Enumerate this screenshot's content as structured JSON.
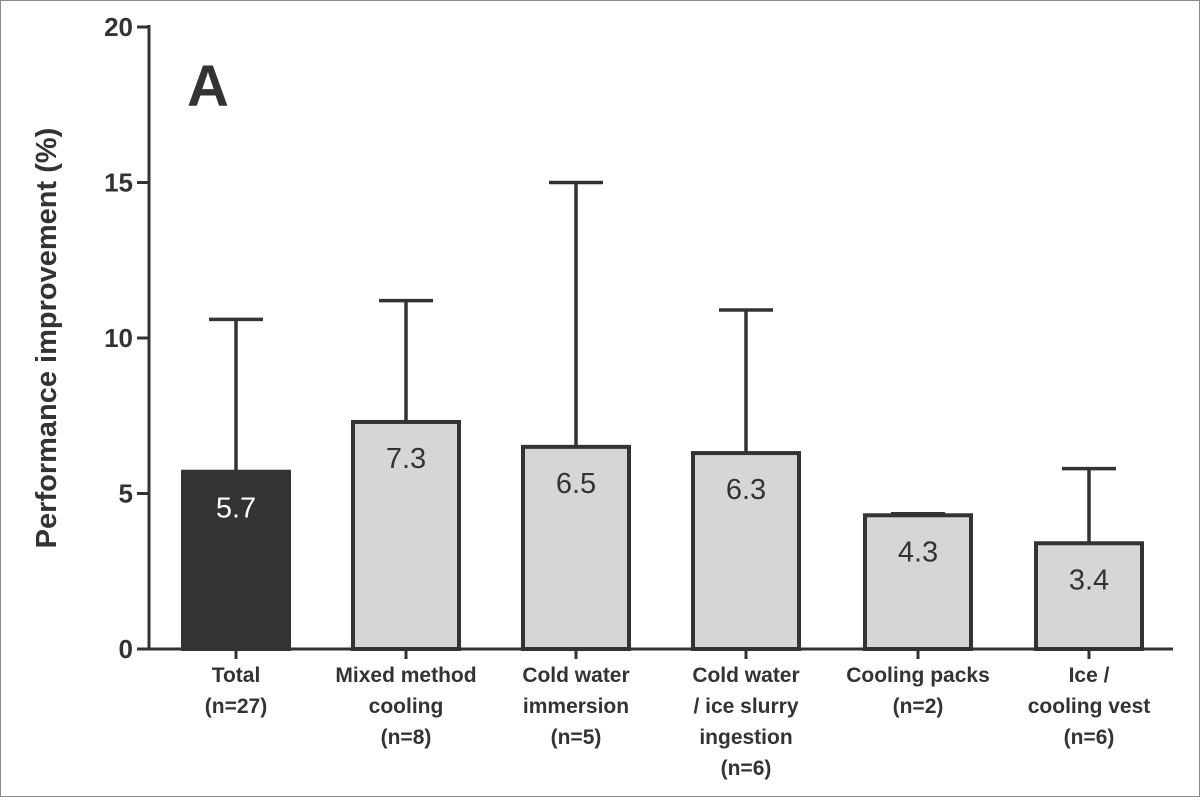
{
  "chart_data": {
    "type": "bar",
    "panel_label": "A",
    "ylabel": "Performance improvement (%)",
    "xlabel": "",
    "ylim": [
      0,
      20
    ],
    "yticks": [
      0,
      5,
      10,
      15,
      20
    ],
    "grid": false,
    "categories": [
      [
        "Total",
        "(n=27)"
      ],
      [
        "Mixed method",
        "cooling",
        "(n=8)"
      ],
      [
        "Cold water",
        "immersion",
        "(n=5)"
      ],
      [
        "Cold water",
        "/ ice slurry",
        "ingestion",
        "(n=6)"
      ],
      [
        "Cooling packs",
        "(n=2)"
      ],
      [
        "Ice /",
        "cooling vest",
        "(n=6)"
      ]
    ],
    "values": [
      5.7,
      7.3,
      6.5,
      6.3,
      4.3,
      3.4
    ],
    "value_labels": [
      "5.7",
      "7.3",
      "6.5",
      "6.3",
      "4.3",
      "3.4"
    ],
    "error_upper": [
      10.6,
      11.2,
      15.0,
      10.9,
      4.35,
      5.8
    ],
    "colors": {
      "highlight_bar": "#333333",
      "bar": "#d6d6d6",
      "highlight_text": "#ffffff",
      "text": "#333333"
    }
  }
}
